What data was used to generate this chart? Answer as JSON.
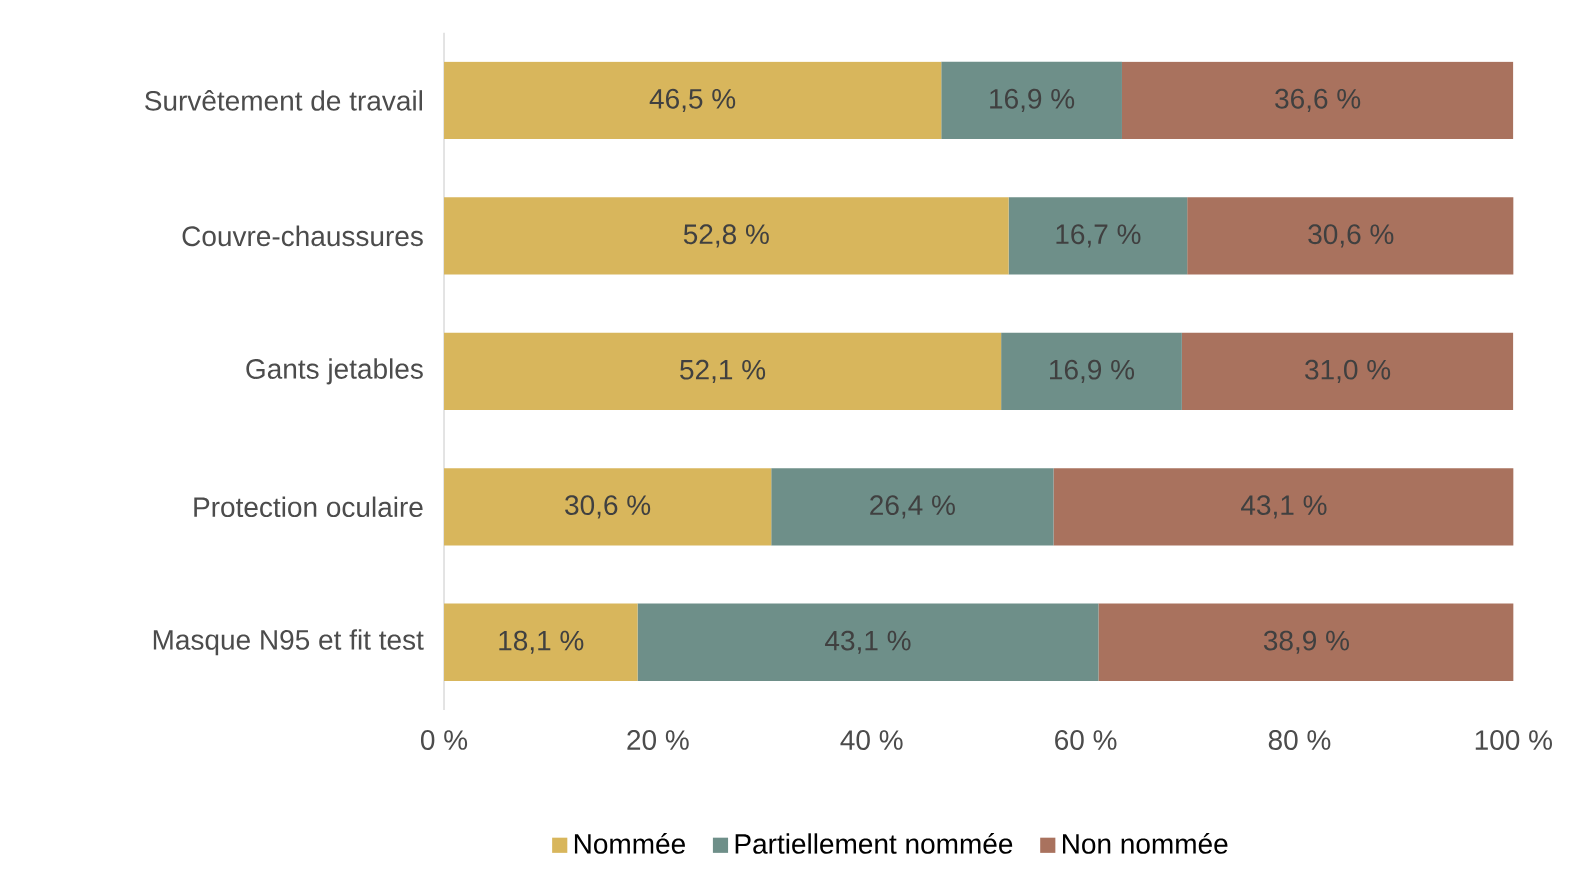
{
  "chart_data": {
    "type": "bar",
    "orientation": "horizontal",
    "stacked": true,
    "categories": [
      "Survêtement de travail",
      "Couvre-chaussures",
      "Gants jetables",
      "Protection oculaire",
      "Masque N95 et fit test"
    ],
    "series": [
      {
        "name": "Nommée",
        "color": "#d8b65c",
        "values": [
          46.5,
          52.8,
          52.1,
          30.6,
          18.1
        ],
        "value_labels": [
          "46,5 %",
          "52,8 %",
          "52,1 %",
          "30,6 %",
          "18,1 %"
        ]
      },
      {
        "name": "Partiellement nommée",
        "color": "#6e8f89",
        "values": [
          16.9,
          16.7,
          16.9,
          26.4,
          43.1
        ],
        "value_labels": [
          "16,9 %",
          "16,7 %",
          "16,9 %",
          "26,4 %",
          "43,1 %"
        ]
      },
      {
        "name": "Non nommée",
        "color": "#a9725e",
        "values": [
          36.6,
          30.6,
          31.0,
          43.1,
          38.9
        ],
        "value_labels": [
          "36,6 %",
          "30,6 %",
          "31,0 %",
          "43,1 %",
          "38,9 %"
        ]
      }
    ],
    "xlim": [
      0,
      100
    ],
    "xticks": [
      {
        "value": 0,
        "label": "0 %"
      },
      {
        "value": 20,
        "label": "20 %"
      },
      {
        "value": 40,
        "label": "40 %"
      },
      {
        "value": 60,
        "label": "60 %"
      },
      {
        "value": 80,
        "label": "80 %"
      },
      {
        "value": 100,
        "label": "100 %"
      }
    ],
    "legend": "bottom"
  }
}
